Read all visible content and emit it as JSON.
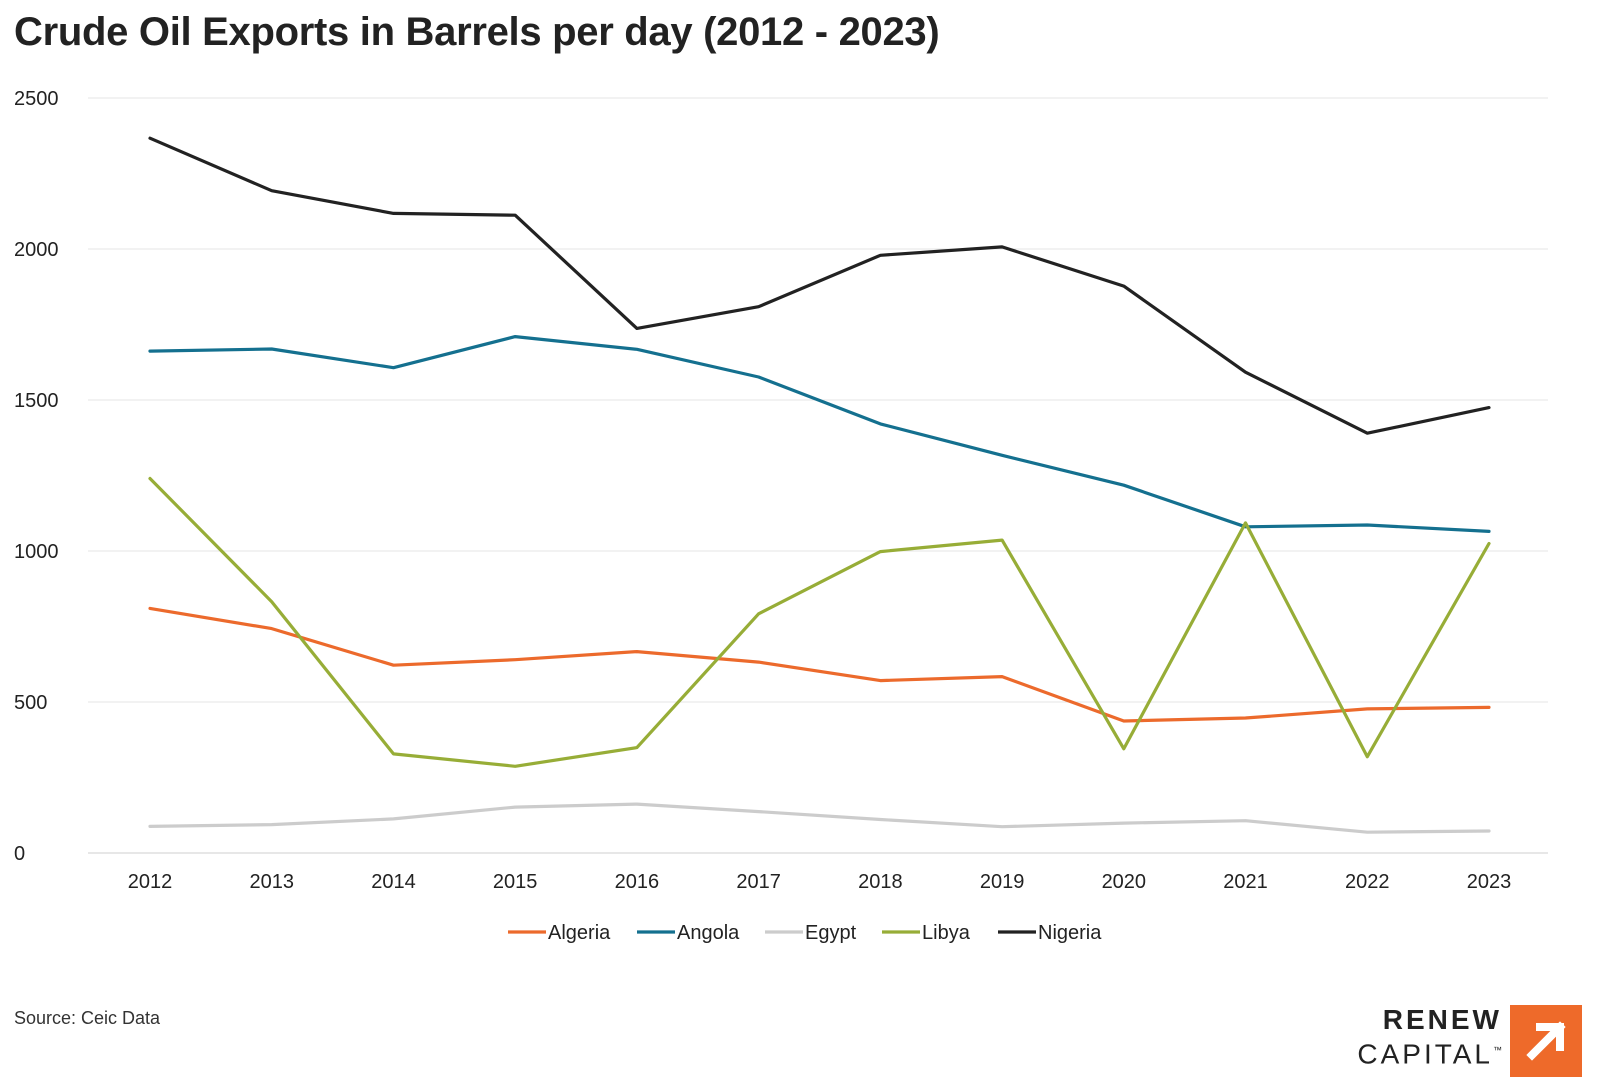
{
  "title": "Crude Oil Exports in Barrels per day (2012 - 2023)",
  "source": "Source: Ceic Data",
  "logo": {
    "line1": "RENEW",
    "line2": "CAPITAL",
    "mark": "™",
    "icon": "arrow-up-right-icon",
    "color": "#ee6a2a"
  },
  "chart_data": {
    "type": "line",
    "title": "Crude Oil Exports in Barrels per day (2012 - 2023)",
    "x": [
      "2012",
      "2013",
      "2014",
      "2015",
      "2016",
      "2017",
      "2018",
      "2019",
      "2020",
      "2021",
      "2022",
      "2023"
    ],
    "ylim": [
      0,
      2500
    ],
    "yticks": [
      "0",
      "500",
      "1000",
      "1500",
      "2000",
      "2500"
    ],
    "grid": true,
    "legend_position": "bottom",
    "series": [
      {
        "name": "Algeria",
        "color": "#ec6a2c",
        "values": [
          810,
          743,
          622,
          640,
          667,
          632,
          571,
          584,
          437,
          447,
          477,
          482
        ]
      },
      {
        "name": "Angola",
        "color": "#14708f",
        "values": [
          1662,
          1669,
          1607,
          1710,
          1668,
          1576,
          1421,
          1317,
          1218,
          1080,
          1086,
          1065
        ]
      },
      {
        "name": "Egypt",
        "color": "#cccccc",
        "values": [
          88,
          94,
          113,
          152,
          162,
          137,
          111,
          87,
          99,
          107,
          69,
          73
        ]
      },
      {
        "name": "Libya",
        "color": "#97ad37",
        "values": [
          1240,
          832,
          328,
          287,
          349,
          792,
          998,
          1036,
          345,
          1093,
          319,
          1025
        ]
      },
      {
        "name": "Nigeria",
        "color": "#222222",
        "values": [
          2367,
          2193,
          2118,
          2112,
          1737,
          1809,
          1979,
          2007,
          1877,
          1592,
          1390,
          1475
        ]
      }
    ]
  }
}
